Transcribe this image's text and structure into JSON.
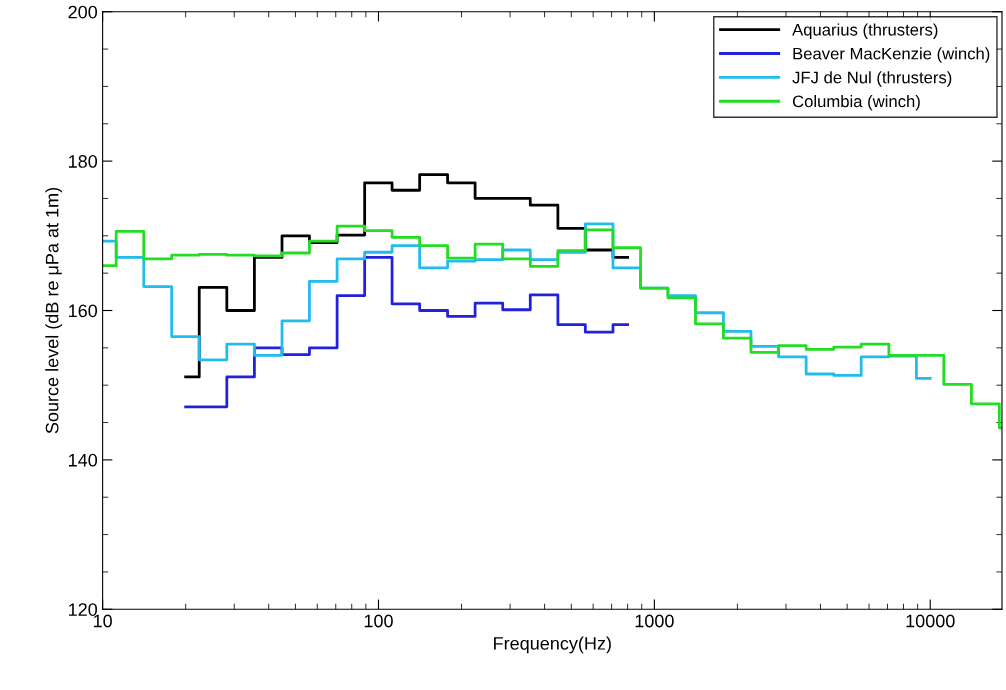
{
  "chart_data": {
    "type": "step",
    "xlabel": "Frequency(Hz)",
    "ylabel": "Source level (dB re μPa at 1m)",
    "log": "x",
    "xlim": [
      10,
      18200
    ],
    "xticks": [
      10,
      100,
      1000,
      10000
    ],
    "ylim": [
      120,
      200
    ],
    "yticks": [
      120,
      140,
      160,
      180,
      200
    ],
    "grid": false,
    "legend": "top right",
    "line_style": "solid",
    "marker": "none",
    "series": [
      {
        "name": "Aquarius (thrusters)",
        "color": "#000000",
        "x": [
          20,
          22.4,
          28.2,
          35.5,
          44.7,
          56.2,
          70.8,
          89.1,
          112,
          141,
          178,
          224,
          282,
          355,
          447,
          562,
          708,
          800
        ],
        "values": [
          151.1,
          163.1,
          160.0,
          167.1,
          170.0,
          169.1,
          170.1,
          177.1,
          176.1,
          178.2,
          177.1,
          175.0,
          175.0,
          174.1,
          171.0,
          168.1,
          167.1,
          167.1
        ]
      },
      {
        "name": "Beaver MacKenzie (winch)",
        "color": "#2222dd",
        "x": [
          20,
          22.4,
          28.2,
          35.5,
          44.7,
          56.2,
          70.8,
          89.1,
          112,
          141,
          178,
          224,
          282,
          355,
          447,
          562,
          708,
          800
        ],
        "values": [
          147.1,
          147.1,
          151.1,
          155.0,
          154.1,
          155.0,
          162.0,
          167.1,
          160.9,
          160.0,
          159.2,
          161.0,
          160.1,
          162.1,
          158.1,
          157.1,
          158.1,
          158.1
        ]
      },
      {
        "name": "JFJ de Nul (thrusters)",
        "color": "#22bbee",
        "x": [
          10,
          11.2,
          14.1,
          17.8,
          22.4,
          28.2,
          35.5,
          44.7,
          56.2,
          70.8,
          89.1,
          112,
          141,
          178,
          224,
          282,
          355,
          447,
          562,
          708,
          891,
          1120,
          1410,
          1780,
          2240,
          2820,
          3550,
          4470,
          5620,
          7080,
          8910,
          10000
        ],
        "values": [
          169.3,
          167.1,
          163.2,
          156.5,
          153.4,
          155.5,
          154.0,
          158.6,
          163.9,
          166.9,
          167.8,
          168.7,
          165.7,
          166.6,
          166.8,
          168.1,
          166.8,
          167.8,
          171.6,
          165.7,
          163.0,
          162.0,
          159.7,
          157.2,
          155.2,
          153.8,
          151.5,
          151.3,
          153.8,
          153.9,
          150.9,
          150.9
        ]
      },
      {
        "name": "Columbia (winch)",
        "color": "#22dd22",
        "x": [
          10,
          11.2,
          14.1,
          17.8,
          22.4,
          28.2,
          35.5,
          44.7,
          56.2,
          70.8,
          89.1,
          112,
          141,
          178,
          224,
          282,
          355,
          447,
          562,
          708,
          891,
          1120,
          1410,
          1780,
          2240,
          2820,
          3550,
          4470,
          5620,
          7080,
          8910,
          11200,
          14100,
          17800,
          18200
        ],
        "values": [
          166.0,
          170.6,
          166.9,
          167.4,
          167.5,
          167.4,
          167.3,
          167.7,
          169.3,
          171.3,
          170.7,
          169.8,
          168.7,
          167.0,
          168.9,
          166.9,
          165.9,
          168.0,
          170.8,
          168.4,
          163.0,
          161.7,
          158.2,
          156.3,
          154.4,
          155.3,
          154.8,
          155.1,
          155.5,
          154.0,
          154.0,
          150.1,
          147.5,
          144.3,
          144.3
        ]
      }
    ]
  }
}
